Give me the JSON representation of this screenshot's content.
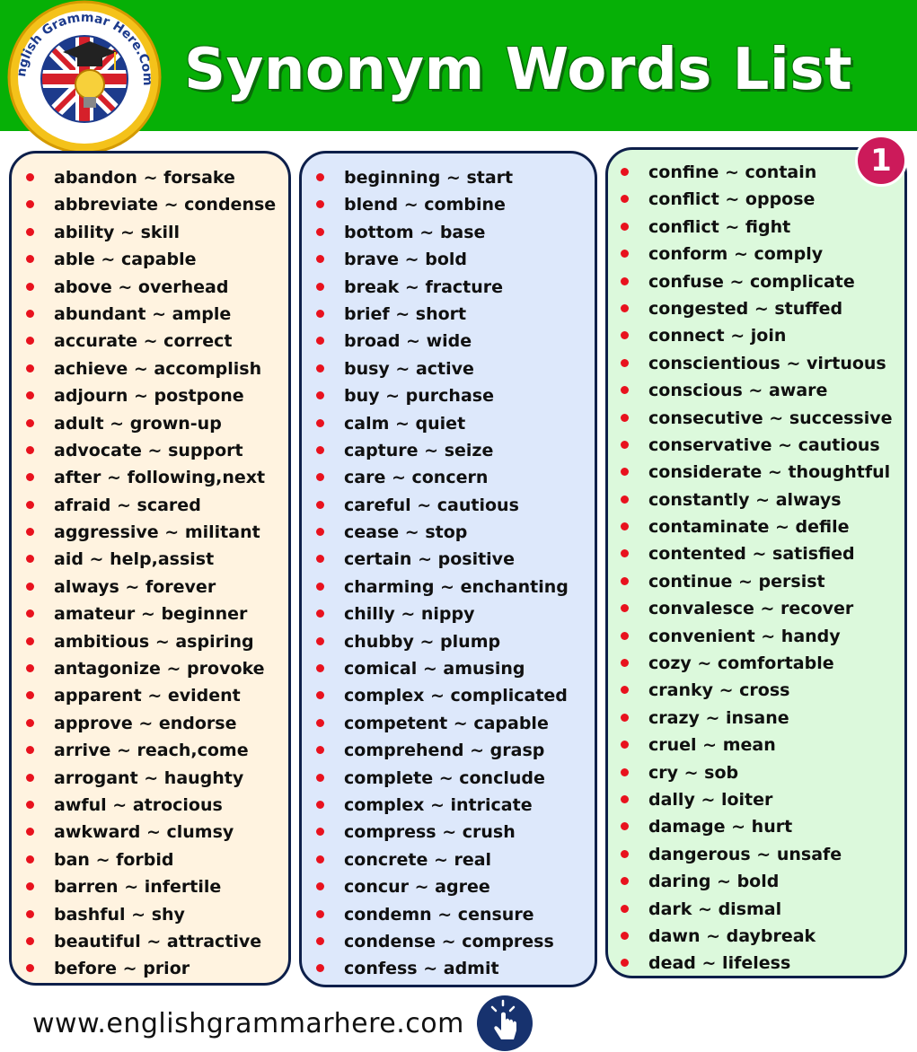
{
  "header": {
    "title": "Synonym Words List",
    "logo_text": "English Grammar Here.Com",
    "bg_color": "#06b006"
  },
  "badge": {
    "number": "1",
    "color": "#cc1a5a"
  },
  "columns": [
    {
      "bg_color": "#fff3e0",
      "items": [
        "abandon ~ forsake",
        "abbreviate ~ condense",
        "ability ~ skill",
        "able ~ capable",
        "above ~ overhead",
        "abundant ~ ample",
        "accurate ~ correct",
        "achieve ~ accomplish",
        "adjourn ~ postpone",
        "adult ~ grown-up",
        "advocate ~ support",
        "after ~ following,next",
        "afraid ~ scared",
        "aggressive ~ militant",
        "aid ~ help,assist",
        "always ~ forever",
        "amateur ~ beginner",
        "ambitious ~ aspiring",
        "antagonize ~ provoke",
        "apparent ~ evident",
        "approve ~ endorse",
        "arrive ~ reach,come",
        "arrogant ~ haughty",
        "awful ~ atrocious",
        "awkward ~ clumsy",
        "ban ~ forbid",
        "barren ~ infertile",
        "bashful ~ shy",
        "beautiful ~ attractive",
        "before ~ prior"
      ]
    },
    {
      "bg_color": "#dde8fb",
      "items": [
        "beginning ~ start",
        "blend ~ combine",
        "bottom ~ base",
        "brave ~ bold",
        "break ~ fracture",
        "brief ~ short",
        "broad ~ wide",
        "busy ~ active",
        "buy ~ purchase",
        "calm ~ quiet",
        "capture ~ seize",
        "care ~ concern",
        "careful ~ cautious",
        "cease ~ stop",
        "certain ~ positive",
        "charming ~ enchanting",
        "chilly ~ nippy",
        "chubby ~ plump",
        "comical ~ amusing",
        "complex ~ complicated",
        "competent ~ capable",
        "comprehend ~ grasp",
        "complete ~ conclude",
        "complex ~ intricate",
        "compress ~ crush",
        "concrete ~ real",
        "concur ~ agree",
        "condemn ~ censure",
        "condense ~ compress",
        "confess ~ admit"
      ]
    },
    {
      "bg_color": "#dcf9dc",
      "items": [
        "confine ~ contain",
        "conflict ~ oppose",
        "conflict ~ fight",
        "conform ~ comply",
        "confuse ~ complicate",
        "congested ~ stuffed",
        "connect ~ join",
        "conscientious ~ virtuous",
        "conscious ~ aware",
        "consecutive ~ successive",
        "conservative ~ cautious",
        "considerate ~ thoughtful",
        "constantly ~ always",
        "contaminate ~ defile",
        "contented ~ satisfied",
        "continue ~ persist",
        "convalesce ~ recover",
        "convenient ~ handy",
        "cozy ~ comfortable",
        "cranky ~ cross",
        "crazy ~ insane",
        "cruel ~ mean",
        "cry ~ sob",
        "dally ~ loiter",
        "damage ~ hurt",
        "dangerous ~ unsafe",
        "daring ~ bold",
        "dark ~ dismal",
        "dawn ~ daybreak",
        "dead ~ lifeless"
      ]
    }
  ],
  "footer": {
    "url": "www.englishgrammarhere.com",
    "icon": "pointer-hand-icon"
  }
}
